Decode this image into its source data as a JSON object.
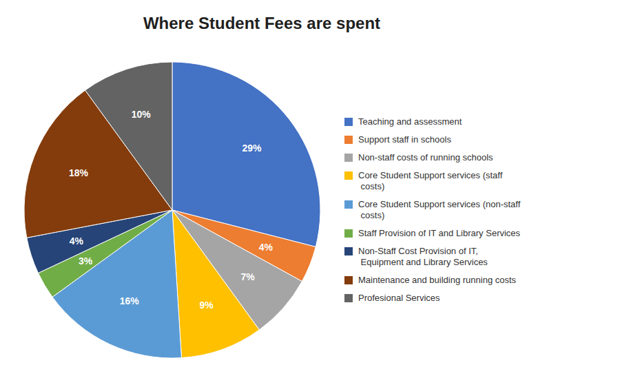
{
  "chart_data": {
    "type": "pie",
    "title": "Where Student Fees are spent",
    "categories": [
      "Teaching and assessment",
      "Support staff in schools",
      "Non-staff costs of running schools",
      "Core Student Support services (staff\n  costs)",
      "Core Student Support services (non-staff\n  costs)",
      "Staff Provision of IT and Library Services",
      "Non-Staff Cost Provision of IT,\n  Equipment and Library Services",
      "Maintenance and building running costs",
      "Profesional Services"
    ],
    "values": [
      29,
      4,
      7,
      9,
      16,
      3,
      4,
      18,
      10
    ],
    "value_labels": [
      "29%",
      "4%",
      "7%",
      "9%",
      "16%",
      "3%",
      "4%",
      "18%",
      "10%"
    ],
    "colors": [
      "#4472C4",
      "#ED7D31",
      "#A5A5A5",
      "#FFC000",
      "#5B9BD5",
      "#70AD47",
      "#264478",
      "#843C0C",
      "#636363"
    ],
    "data_labels": true,
    "legend": "right"
  }
}
